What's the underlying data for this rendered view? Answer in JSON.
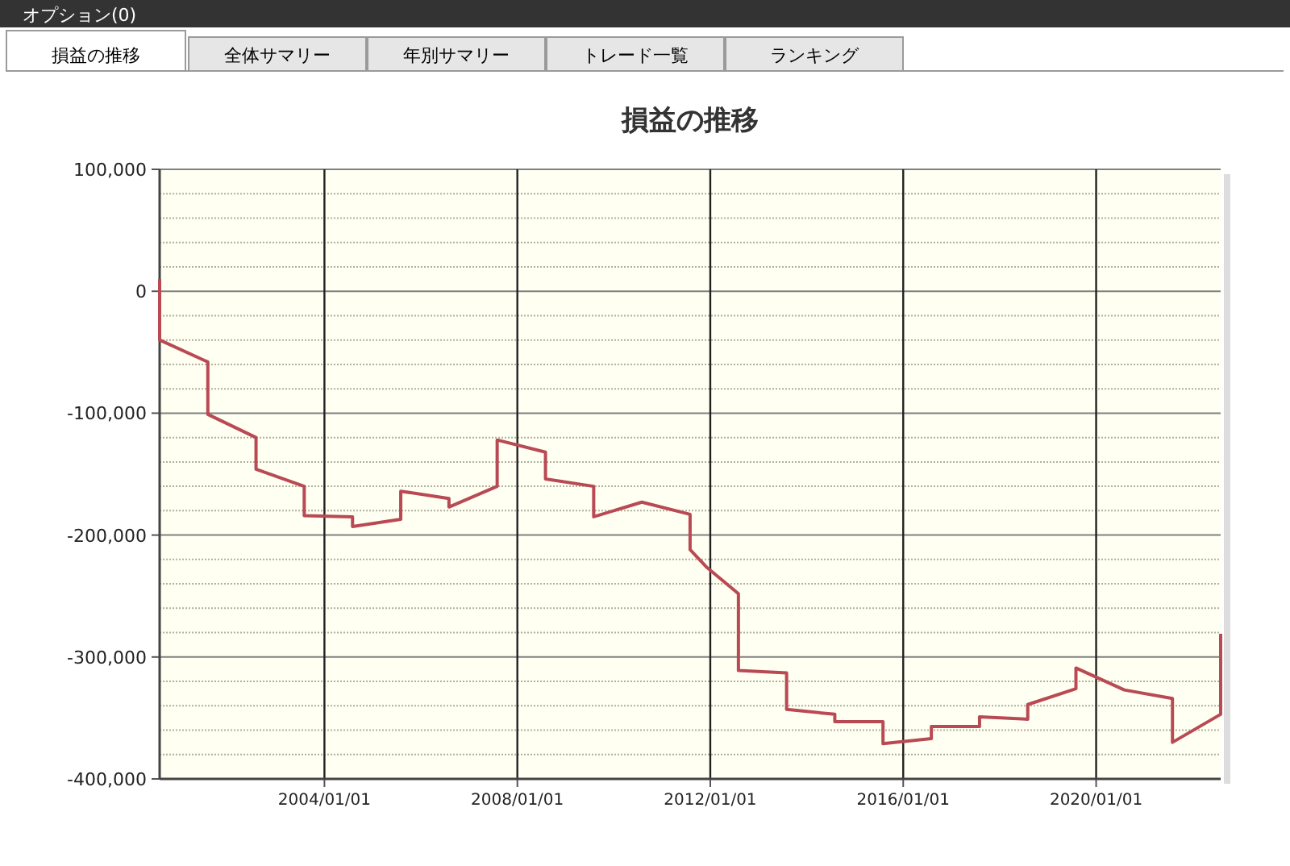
{
  "chart_data": {
    "type": "line",
    "title": "損益の推移",
    "annotations": [
      "オプション(0)",
      "損益の推移",
      "全体サマリー",
      "年別サマリー",
      "トレード一覧",
      "ランキング"
    ],
    "series": [
      {
        "color": "#b94a54",
        "x": [
          "2000-08",
          "2000-08",
          "2001-08",
          "2001-08",
          "2002-08",
          "2002-08",
          "2003-08",
          "2003-08",
          "2004-08",
          "2004-08",
          "2005-08",
          "2005-08",
          "2006-08",
          "2006-08",
          "2007-08",
          "2007-08",
          "2008-08",
          "2008-08",
          "2009-08",
          "2009-08",
          "2010-08",
          "2011-08",
          "2011-08",
          "2011-12",
          "2012-08",
          "2012-08",
          "2013-08",
          "2013-08",
          "2014-08",
          "2014-08",
          "2015-08",
          "2015-08",
          "2016-08",
          "2016-08",
          "2017-08",
          "2017-08",
          "2018-08",
          "2018-08",
          "2019-08",
          "2019-08",
          "2020-08",
          "2021-08",
          "2021-08",
          "2022-08",
          "2022-08"
        ],
        "values": [
          10000,
          -40000,
          -58000,
          -101000,
          -120000,
          -146000,
          -160000,
          -184000,
          -185000,
          -193000,
          -187000,
          -164000,
          -170000,
          -177000,
          -160000,
          -122000,
          -132000,
          -154000,
          -160000,
          -185000,
          -173000,
          -183000,
          -212000,
          -226000,
          -248000,
          -311000,
          -313000,
          -343000,
          -347000,
          -353000,
          -353000,
          -371000,
          -367000,
          -357000,
          -357000,
          -349000,
          -351000,
          -339000,
          -326000,
          -309000,
          -327000,
          -334000,
          -370000,
          -347000,
          -281000
        ]
      }
    ],
    "xlim": [
      "2000-08",
      "2022-08"
    ],
    "xticks": [
      {
        "value": "2004-01-01",
        "label": "2004/01/01"
      },
      {
        "value": "2008-01-01",
        "label": "2008/01/01"
      },
      {
        "value": "2012-01-01",
        "label": "2012/01/01"
      },
      {
        "value": "2016-01-01",
        "label": "2016/01/01"
      },
      {
        "value": "2020-01-01",
        "label": "2020/01/01"
      }
    ],
    "ylim": [
      -400000,
      100000
    ],
    "yticks": [
      {
        "value": 100000,
        "label": "100,000"
      },
      {
        "value": 80000,
        "label": null
      },
      {
        "value": 60000,
        "label": null
      },
      {
        "value": 40000,
        "label": null
      },
      {
        "value": 20000,
        "label": null
      },
      {
        "value": 0,
        "label": "0"
      },
      {
        "value": -20000,
        "label": null
      },
      {
        "value": -40000,
        "label": null
      },
      {
        "value": -60000,
        "label": null
      },
      {
        "value": -80000,
        "label": null
      },
      {
        "value": -100000,
        "label": "-100,000"
      },
      {
        "value": -120000,
        "label": null
      },
      {
        "value": -140000,
        "label": null
      },
      {
        "value": -160000,
        "label": null
      },
      {
        "value": -180000,
        "label": null
      },
      {
        "value": -200000,
        "label": "-200,000"
      },
      {
        "value": -220000,
        "label": null
      },
      {
        "value": -240000,
        "label": null
      },
      {
        "value": -260000,
        "label": null
      },
      {
        "value": -280000,
        "label": null
      },
      {
        "value": -300000,
        "label": "-300,000"
      },
      {
        "value": -320000,
        "label": null
      },
      {
        "value": -340000,
        "label": null
      },
      {
        "value": -360000,
        "label": null
      },
      {
        "value": -380000,
        "label": null
      },
      {
        "value": -400000,
        "label": "-400,000"
      }
    ],
    "grid": true,
    "marker": "none",
    "line_style": "solid"
  }
}
